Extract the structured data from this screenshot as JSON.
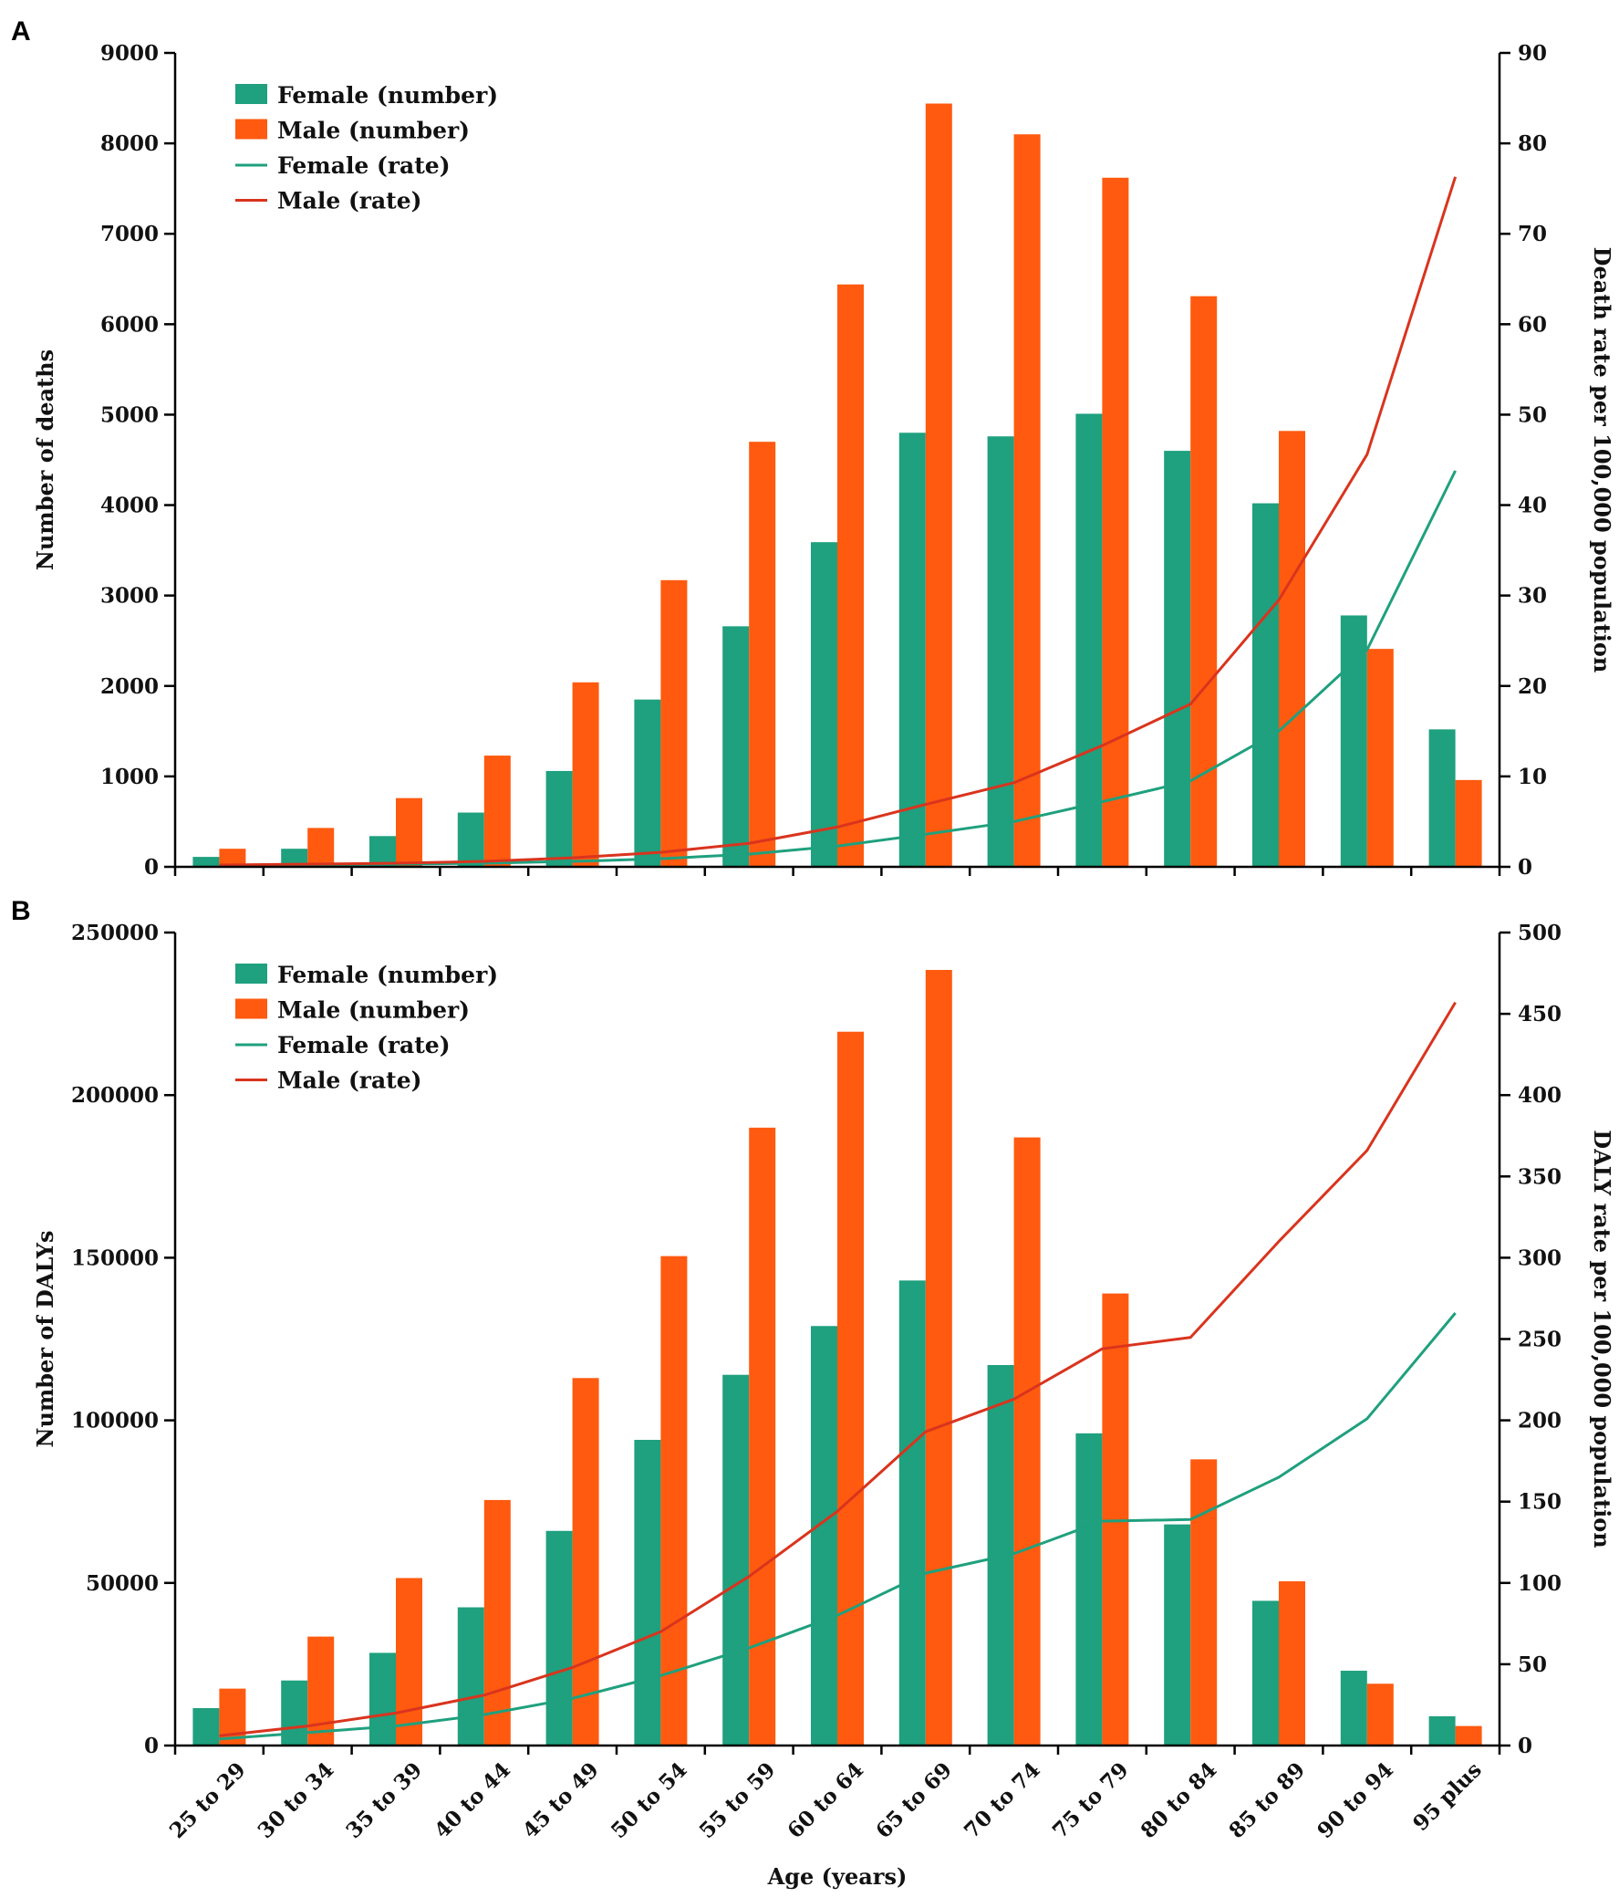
{
  "chart_data": [
    {
      "panel_label": "A",
      "type": "bar+line",
      "categories": [
        "25 to 29",
        "30 to 34",
        "35 to 39",
        "40 to 44",
        "45 to 49",
        "50 to 54",
        "55 to 59",
        "60 to 64",
        "65 to 69",
        "70 to 74",
        "75 to 79",
        "80 to 84",
        "85 to 89",
        "90 to 94",
        "95 plus"
      ],
      "ylabel": "Number of deaths",
      "y2label": "Death rate per 100,000 population",
      "ylim": [
        0,
        9000
      ],
      "yticks": [
        0,
        1000,
        2000,
        3000,
        4000,
        5000,
        6000,
        7000,
        8000,
        9000
      ],
      "y2lim": [
        0,
        90
      ],
      "y2ticks": [
        0,
        10,
        20,
        30,
        40,
        50,
        60,
        70,
        80,
        90
      ],
      "legend_position": "top-left",
      "series": [
        {
          "name": "Female  (number)",
          "kind": "bar",
          "axis": "left",
          "color": "#1fa07e",
          "values": [
            110,
            200,
            340,
            600,
            1060,
            1850,
            2660,
            3590,
            4800,
            4760,
            5010,
            4600,
            4020,
            2780,
            1520
          ]
        },
        {
          "name": "Male  (number)",
          "kind": "bar",
          "axis": "left",
          "color": "#ff5a0f",
          "values": [
            200,
            430,
            760,
            1230,
            2040,
            3170,
            4700,
            6440,
            8440,
            8100,
            7620,
            6310,
            4820,
            2410,
            960
          ]
        },
        {
          "name": "Female  (rate)",
          "kind": "line",
          "axis": "right",
          "color": "#1fa07e",
          "values": [
            0.1,
            0.2,
            0.3,
            0.4,
            0.6,
            0.9,
            1.4,
            2.3,
            3.6,
            5.0,
            7.2,
            9.5,
            15.0,
            24.0,
            43.8
          ]
        },
        {
          "name": "Male  (rate)",
          "kind": "line",
          "axis": "right",
          "color": "#d9341e",
          "values": [
            0.2,
            0.3,
            0.4,
            0.6,
            1.0,
            1.6,
            2.6,
            4.4,
            6.9,
            9.3,
            13.4,
            18.0,
            29.5,
            45.6,
            76.3
          ]
        }
      ]
    },
    {
      "panel_label": "B",
      "type": "bar+line",
      "categories": [
        "25 to 29",
        "30 to 34",
        "35 to 39",
        "40 to 44",
        "45 to 49",
        "50 to 54",
        "55 to 59",
        "60 to 64",
        "65 to 69",
        "70 to 74",
        "75 to 79",
        "80 to 84",
        "85 to 89",
        "90 to 94",
        "95 plus"
      ],
      "ylabel": "Number of DALYs",
      "y2label": "DALY rate per 100,000 population",
      "xlabel": "Age  (years)",
      "ylim": [
        0,
        250000
      ],
      "yticks": [
        0,
        50000,
        100000,
        150000,
        200000,
        250000
      ],
      "y2lim": [
        0,
        500
      ],
      "y2ticks": [
        0,
        50,
        100,
        150,
        200,
        250,
        300,
        350,
        400,
        450,
        500
      ],
      "legend_position": "top-left",
      "series": [
        {
          "name": "Female  (number)",
          "kind": "bar",
          "axis": "left",
          "color": "#1fa07e",
          "values": [
            11500,
            20000,
            28500,
            42500,
            66000,
            94000,
            114000,
            129000,
            143000,
            117000,
            96000,
            68000,
            44500,
            23000,
            9000
          ]
        },
        {
          "name": "Male  (number)",
          "kind": "bar",
          "axis": "left",
          "color": "#ff5a0f",
          "values": [
            17500,
            33500,
            51500,
            75500,
            113000,
            150500,
            190000,
            219500,
            238500,
            187000,
            139000,
            88000,
            50500,
            19000,
            6000
          ]
        },
        {
          "name": "Female  (rate)",
          "kind": "line",
          "axis": "right",
          "color": "#1fa07e",
          "values": [
            4,
            8,
            12,
            19,
            29,
            43,
            60,
            80,
            106,
            118,
            138,
            139,
            165,
            201,
            266
          ]
        },
        {
          "name": "Male  (rate)",
          "kind": "line",
          "axis": "right",
          "color": "#d9341e",
          "values": [
            6,
            12,
            20,
            31,
            48,
            70,
            104,
            144,
            193,
            213,
            244,
            251,
            310,
            366,
            457
          ]
        }
      ]
    }
  ]
}
